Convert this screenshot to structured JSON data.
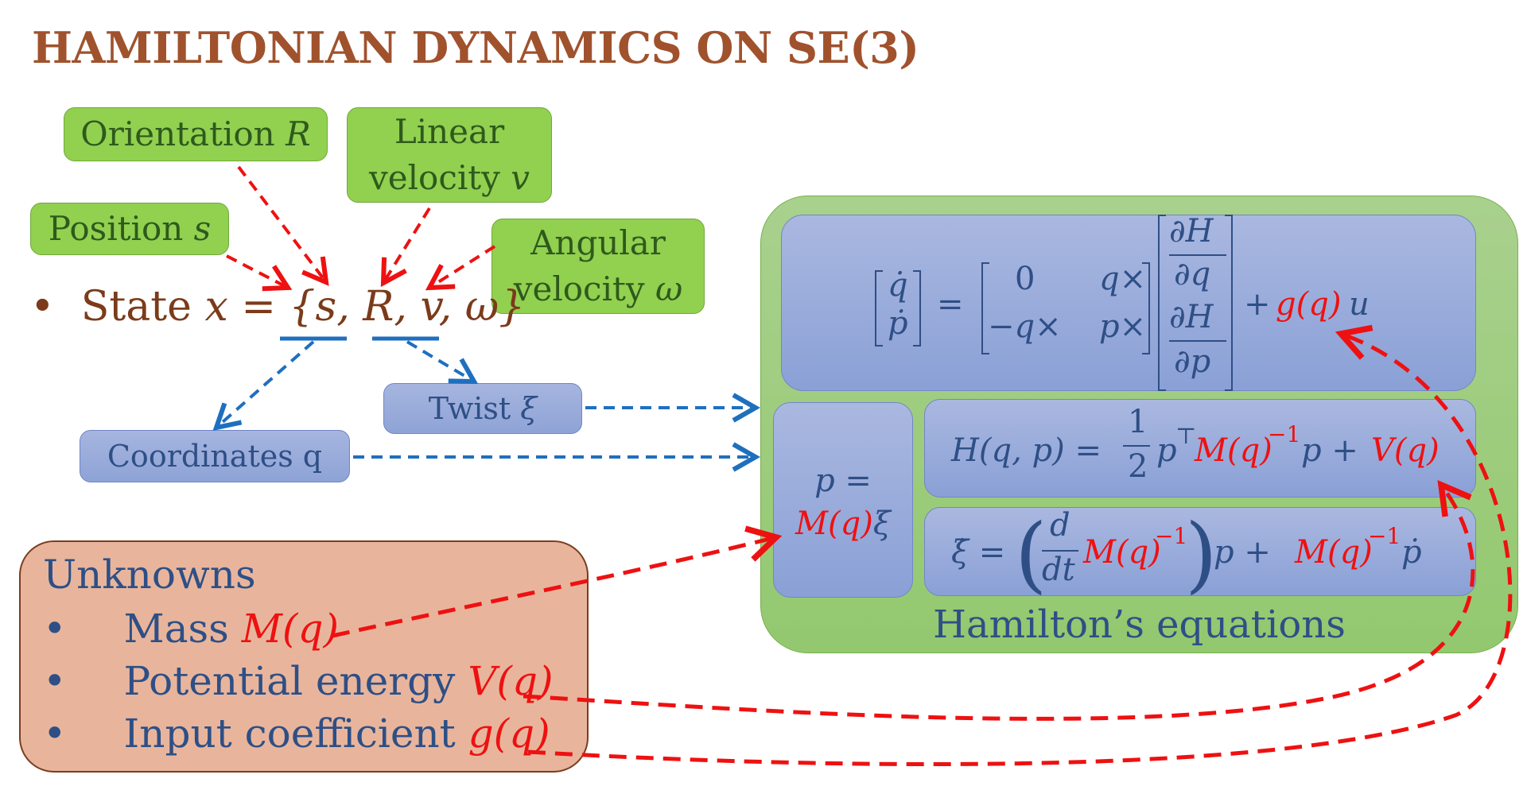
{
  "title": "HAMILTONIAN DYNAMICS ON SE(3)",
  "labels": {
    "orientation": "Orientation",
    "orientation_sym": "R",
    "linear_1": "Linear",
    "linear_2": "velocity",
    "linear_sym": "v",
    "position": "Position",
    "position_sym": "s",
    "angular_1": "Angular",
    "angular_2": "velocity",
    "angular_sym": "ω"
  },
  "state": {
    "bullet": "•",
    "prefix": "State",
    "expr": "x = {s, R, v, ω}"
  },
  "twist": {
    "label": "Twist",
    "sym": "ξ"
  },
  "coordinates": {
    "label": "Coordinates q"
  },
  "hamilton": {
    "caption": "Hamilton’s equations",
    "momentum_top": "p =",
    "momentum_bottom_red": "M(q)",
    "momentum_bottom_rest": "ξ",
    "energy_lhs": "H(q, p) =",
    "energy_half_num": "1",
    "energy_half_den": "2",
    "energy_pt": "p",
    "energy_T": "⊤",
    "energy_Minv": "M(q)",
    "energy_exp": "−1",
    "energy_p": "p +",
    "energy_V": "V(q)",
    "xi_lhs": "ξ̇ =",
    "xi_d": "d",
    "xi_dt": "dt",
    "xi_M": "M(q)",
    "xi_exp": "−1",
    "xi_p": "p +",
    "xi_M2": "M(q)",
    "xi_exp2": "−1",
    "xi_pdot": "ṗ",
    "dyn_qdot": "q̇",
    "dyn_pdot": "ṗ",
    "dyn_eq": "=",
    "dyn_m11": "0",
    "dyn_m12": "q×",
    "dyn_m21": "−q×",
    "dyn_m22": "p×",
    "dyn_dH": "∂H",
    "dyn_dq": "∂q",
    "dyn_dp": "∂p",
    "dyn_plus": "+",
    "dyn_g": "g(q)",
    "dyn_u": "u"
  },
  "unknowns": {
    "heading": "Unknowns",
    "items": [
      {
        "bullet": "•",
        "label": "Mass",
        "sym": "M(q)"
      },
      {
        "bullet": "•",
        "label": "Potential energy",
        "sym": "V(q)"
      },
      {
        "bullet": "•",
        "label": "Input coefficient",
        "sym": "g(q)"
      }
    ]
  },
  "colors": {
    "title": "#a0522d",
    "green_box": "#92d050",
    "blue_box": "#8ea3d6",
    "red_arrow": "#ee1111",
    "blue_arrow": "#1f6fbf",
    "unknowns_box": "#e8b59c"
  }
}
